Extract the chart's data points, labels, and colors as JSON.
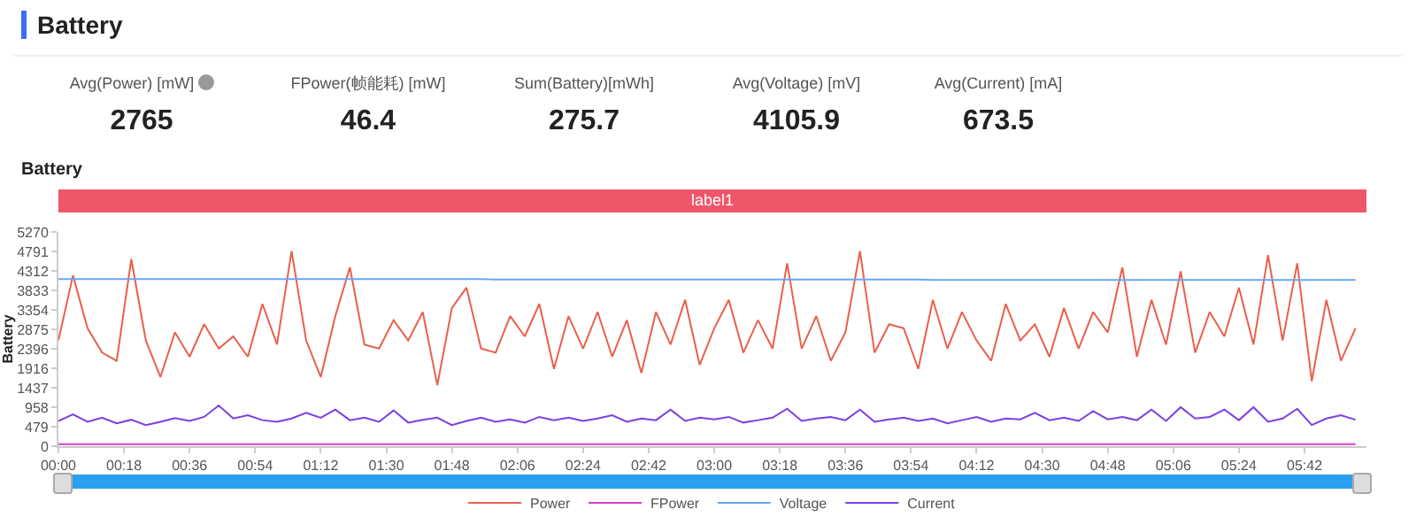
{
  "chart_data": [
    {
      "type": "other",
      "title": "Battery",
      "annotations": [
        "Avg(Power) [mW]",
        "2765",
        "FPower(帧能耗) [mW]",
        "46.4",
        "Sum(Battery)[mWh]",
        "275.7",
        "Avg(Voltage) [mV]",
        "4105.9",
        "Avg(Current) [mA]",
        "673.5"
      ]
    },
    {
      "type": "line",
      "title": "Battery",
      "ylabel": "Battery",
      "legend": "bottom",
      "grid": false,
      "marker": "none",
      "line_style": "solid",
      "x": [
        0,
        4,
        8,
        12,
        16,
        20,
        24,
        28,
        32,
        36,
        40,
        44,
        48,
        52,
        56,
        60,
        64,
        68,
        72,
        76,
        80,
        84,
        88,
        92,
        96,
        100,
        104,
        108,
        112,
        116,
        120,
        124,
        128,
        132,
        136,
        140,
        144,
        148,
        152,
        156,
        160,
        164,
        168,
        172,
        176,
        180,
        184,
        188,
        192,
        196,
        200,
        204,
        208,
        212,
        216,
        220,
        224,
        228,
        232,
        236,
        240,
        244,
        248,
        252,
        256,
        260,
        264,
        268,
        272,
        276,
        280,
        284,
        288,
        292,
        296,
        300,
        304,
        308,
        312,
        316,
        320,
        324,
        328,
        332,
        336,
        340,
        344,
        348,
        352,
        356
      ],
      "xlim": [
        0,
        359
      ],
      "xticks": [
        {
          "value": 0,
          "label": "00:00"
        },
        {
          "value": 18,
          "label": "00:18"
        },
        {
          "value": 36,
          "label": "00:36"
        },
        {
          "value": 54,
          "label": "00:54"
        },
        {
          "value": 72,
          "label": "01:12"
        },
        {
          "value": 90,
          "label": "01:30"
        },
        {
          "value": 108,
          "label": "01:48"
        },
        {
          "value": 126,
          "label": "02:06"
        },
        {
          "value": 144,
          "label": "02:24"
        },
        {
          "value": 162,
          "label": "02:42"
        },
        {
          "value": 180,
          "label": "03:00"
        },
        {
          "value": 198,
          "label": "03:18"
        },
        {
          "value": 216,
          "label": "03:36"
        },
        {
          "value": 234,
          "label": "03:54"
        },
        {
          "value": 252,
          "label": "04:12"
        },
        {
          "value": 270,
          "label": "04:30"
        },
        {
          "value": 288,
          "label": "04:48"
        },
        {
          "value": 306,
          "label": "05:06"
        },
        {
          "value": 324,
          "label": "05:24"
        },
        {
          "value": 342,
          "label": "05:42"
        }
      ],
      "ylim": [
        0,
        5270
      ],
      "yticks": [
        0,
        479,
        958,
        1437,
        1916,
        2396,
        2875,
        3354,
        3833,
        4312,
        4791,
        5270
      ],
      "annotations": [
        "label1"
      ],
      "series": [
        {
          "name": "Power",
          "color": "#e8604c",
          "values": [
            2600,
            4200,
            2900,
            2300,
            2100,
            4600,
            2600,
            1700,
            2800,
            2200,
            3000,
            2400,
            2700,
            2200,
            3500,
            2500,
            4800,
            2600,
            1700,
            3200,
            4400,
            2500,
            2400,
            3100,
            2600,
            3300,
            1500,
            3400,
            3900,
            2400,
            2300,
            3200,
            2700,
            3500,
            1900,
            3200,
            2400,
            3300,
            2200,
            3100,
            1800,
            3300,
            2500,
            3600,
            2000,
            2900,
            3600,
            2300,
            3100,
            2400,
            4500,
            2400,
            3200,
            2100,
            2800,
            4800,
            2300,
            3000,
            2900,
            1900,
            3600,
            2400,
            3300,
            2600,
            2100,
            3500,
            2600,
            3000,
            2200,
            3400,
            2400,
            3300,
            2800,
            4400,
            2200,
            3600,
            2500,
            4300,
            2300,
            3300,
            2700,
            3900,
            2500,
            4700,
            2600,
            4500,
            1600,
            3600,
            2100,
            2900
          ]
        },
        {
          "name": "FPower",
          "color": "#d63fc7",
          "values": [
            50,
            50,
            50,
            50,
            50,
            50,
            50,
            50,
            50,
            50,
            50,
            50,
            50,
            50,
            50,
            50,
            50,
            50,
            50,
            50,
            50,
            50,
            50,
            50,
            50,
            50,
            50,
            50,
            50,
            50,
            50,
            50,
            50,
            50,
            50,
            50,
            50,
            50,
            50,
            50,
            50,
            50,
            50,
            50,
            50,
            50,
            50,
            50,
            50,
            50,
            50,
            50,
            50,
            50,
            50,
            50,
            50,
            50,
            50,
            50,
            50,
            50,
            50,
            50,
            50,
            50,
            50,
            50,
            50,
            50,
            50,
            50,
            50,
            50,
            50,
            50,
            50,
            50,
            50,
            50,
            50,
            50,
            50,
            50,
            50,
            50,
            50,
            50,
            50,
            50
          ]
        },
        {
          "name": "Voltage",
          "color": "#6aa6f5",
          "values": [
            4110,
            4110,
            4110,
            4110,
            4110,
            4110,
            4110,
            4110,
            4110,
            4110,
            4110,
            4110,
            4110,
            4110,
            4110,
            4110,
            4110,
            4110,
            4110,
            4110,
            4110,
            4110,
            4110,
            4110,
            4110,
            4110,
            4110,
            4110,
            4110,
            4110,
            4100,
            4100,
            4100,
            4100,
            4100,
            4100,
            4100,
            4100,
            4100,
            4100,
            4100,
            4100,
            4100,
            4100,
            4100,
            4100,
            4100,
            4100,
            4100,
            4100,
            4100,
            4100,
            4100,
            4100,
            4100,
            4100,
            4100,
            4100,
            4100,
            4100,
            4090,
            4090,
            4090,
            4090,
            4090,
            4090,
            4090,
            4090,
            4090,
            4090,
            4090,
            4090,
            4090,
            4090,
            4090,
            4090,
            4090,
            4090,
            4090,
            4090,
            4090,
            4090,
            4090,
            4090,
            4090,
            4090,
            4090,
            4090,
            4090,
            4090
          ]
        },
        {
          "name": "Current",
          "color": "#7b3fe4",
          "values": [
            620,
            780,
            600,
            700,
            560,
            650,
            520,
            600,
            690,
            620,
            720,
            1000,
            680,
            760,
            640,
            600,
            680,
            820,
            700,
            900,
            640,
            700,
            600,
            880,
            580,
            650,
            700,
            520,
            620,
            700,
            600,
            660,
            580,
            720,
            640,
            700,
            620,
            680,
            760,
            600,
            680,
            640,
            900,
            620,
            700,
            660,
            720,
            580,
            640,
            700,
            920,
            620,
            680,
            720,
            640,
            900,
            600,
            660,
            700,
            620,
            680,
            560,
            640,
            720,
            600,
            680,
            660,
            820,
            640,
            700,
            620,
            860,
            660,
            720,
            640,
            900,
            620,
            960,
            680,
            720,
            900,
            640,
            960,
            600,
            680,
            920,
            520,
            680,
            760,
            650
          ]
        }
      ]
    }
  ]
}
